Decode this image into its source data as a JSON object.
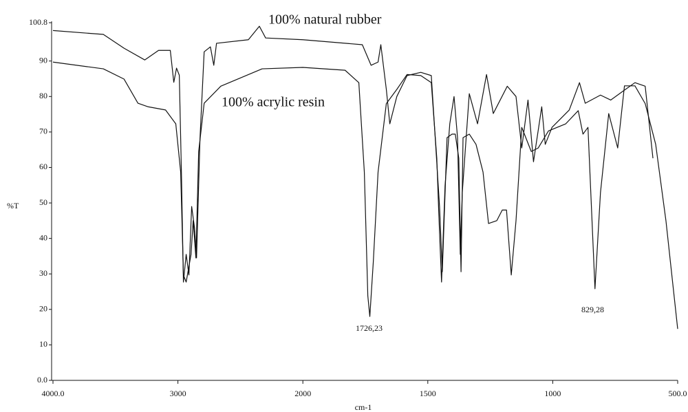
{
  "chart_data": {
    "type": "line",
    "x_label": "cm-1",
    "y_label": "%T",
    "annotations": [
      "100% natural rubber",
      "100% acrylic resin",
      "1726,23",
      "829,28"
    ],
    "xlim": [
      4000,
      500
    ],
    "xticks": [
      {
        "value": 4000,
        "label": "4000.0"
      },
      3000,
      2000,
      1500,
      1000,
      {
        "value": 500,
        "label": "500.0"
      }
    ],
    "ylim": [
      0,
      100.8
    ],
    "yticks": [
      {
        "value": 0,
        "label": "0.0"
      },
      10,
      20,
      30,
      40,
      50,
      60,
      70,
      80,
      90,
      100.8
    ],
    "series": [
      {
        "name": "100% natural rubber",
        "color": "#111111",
        "x": [
          4000,
          3597,
          3431,
          3265,
          3155,
          3061,
          3033,
          3011,
          2989,
          2972,
          2956,
          2934,
          2912,
          2890,
          2867,
          2851,
          2823,
          2790,
          2740,
          2713,
          2691,
          2436,
          2348,
          2298,
          2000,
          1762,
          1727,
          1699,
          1688,
          1666,
          1652,
          1624,
          1583,
          1528,
          1486,
          1453,
          1442,
          1423,
          1403,
          1390,
          1376,
          1367,
          1359,
          1334,
          1307,
          1279,
          1257,
          1224,
          1202,
          1185,
          1166,
          1147,
          1124,
          1086,
          1058,
          1017,
          948,
          898,
          879,
          859,
          831,
          809,
          776,
          740,
          713,
          671,
          630,
          588,
          547,
          500
        ],
        "values": [
          98.6,
          97.5,
          93.6,
          90.3,
          93,
          93,
          84,
          88,
          86,
          58.7,
          27.7,
          35.5,
          29.7,
          49,
          43,
          34.5,
          68.4,
          92.6,
          94,
          88.8,
          95,
          96,
          99.8,
          96.5,
          96,
          94.6,
          88.8,
          89.7,
          94.6,
          82,
          72.3,
          80,
          85.9,
          86.8,
          85.9,
          49,
          30.6,
          68.4,
          69.4,
          69.4,
          62.6,
          30.6,
          68.4,
          69.4,
          66.5,
          58.7,
          44.2,
          45,
          48,
          48,
          29.7,
          45,
          71.3,
          64.5,
          65.5,
          70.3,
          72.3,
          76,
          69.4,
          71.3,
          25.8,
          52.9,
          75.2,
          65.5,
          83,
          83,
          78,
          66.5,
          45,
          14.5
        ]
      },
      {
        "name": "100% acrylic resin",
        "color": "#111111",
        "x": [
          4000,
          3597,
          3431,
          3320,
          3238,
          3099,
          3017,
          2978,
          2956,
          2934,
          2895,
          2878,
          2856,
          2834,
          2790,
          2657,
          2326,
          2000,
          1831,
          1776,
          1754,
          1740,
          1732,
          1718,
          1699,
          1666,
          1624,
          1583,
          1528,
          1486,
          1464,
          1456,
          1445,
          1431,
          1412,
          1395,
          1381,
          1370,
          1362,
          1334,
          1301,
          1265,
          1238,
          1182,
          1147,
          1124,
          1099,
          1077,
          1044,
          1030,
          1003,
          934,
          893,
          870,
          809,
          768,
          713,
          671,
          630,
          599
        ],
        "values": [
          89.7,
          87.8,
          84.9,
          78.1,
          77.1,
          76.2,
          72.3,
          58.7,
          29.7,
          27.7,
          35.5,
          45,
          34.5,
          64.5,
          78.1,
          82.9,
          87.8,
          88.2,
          87.4,
          83.9,
          58.7,
          23.8,
          18,
          33.5,
          58.7,
          78,
          82,
          86.2,
          85.9,
          83.9,
          62.6,
          47,
          27.7,
          54.8,
          72.3,
          80,
          68.4,
          35.5,
          52.9,
          80.8,
          72.3,
          86.2,
          75.2,
          82.9,
          80,
          65.5,
          79,
          61.6,
          77.1,
          66.5,
          71.3,
          76.2,
          83.9,
          78.1,
          80.4,
          79,
          81.8,
          83.9,
          82.9,
          62.6
        ]
      }
    ]
  }
}
